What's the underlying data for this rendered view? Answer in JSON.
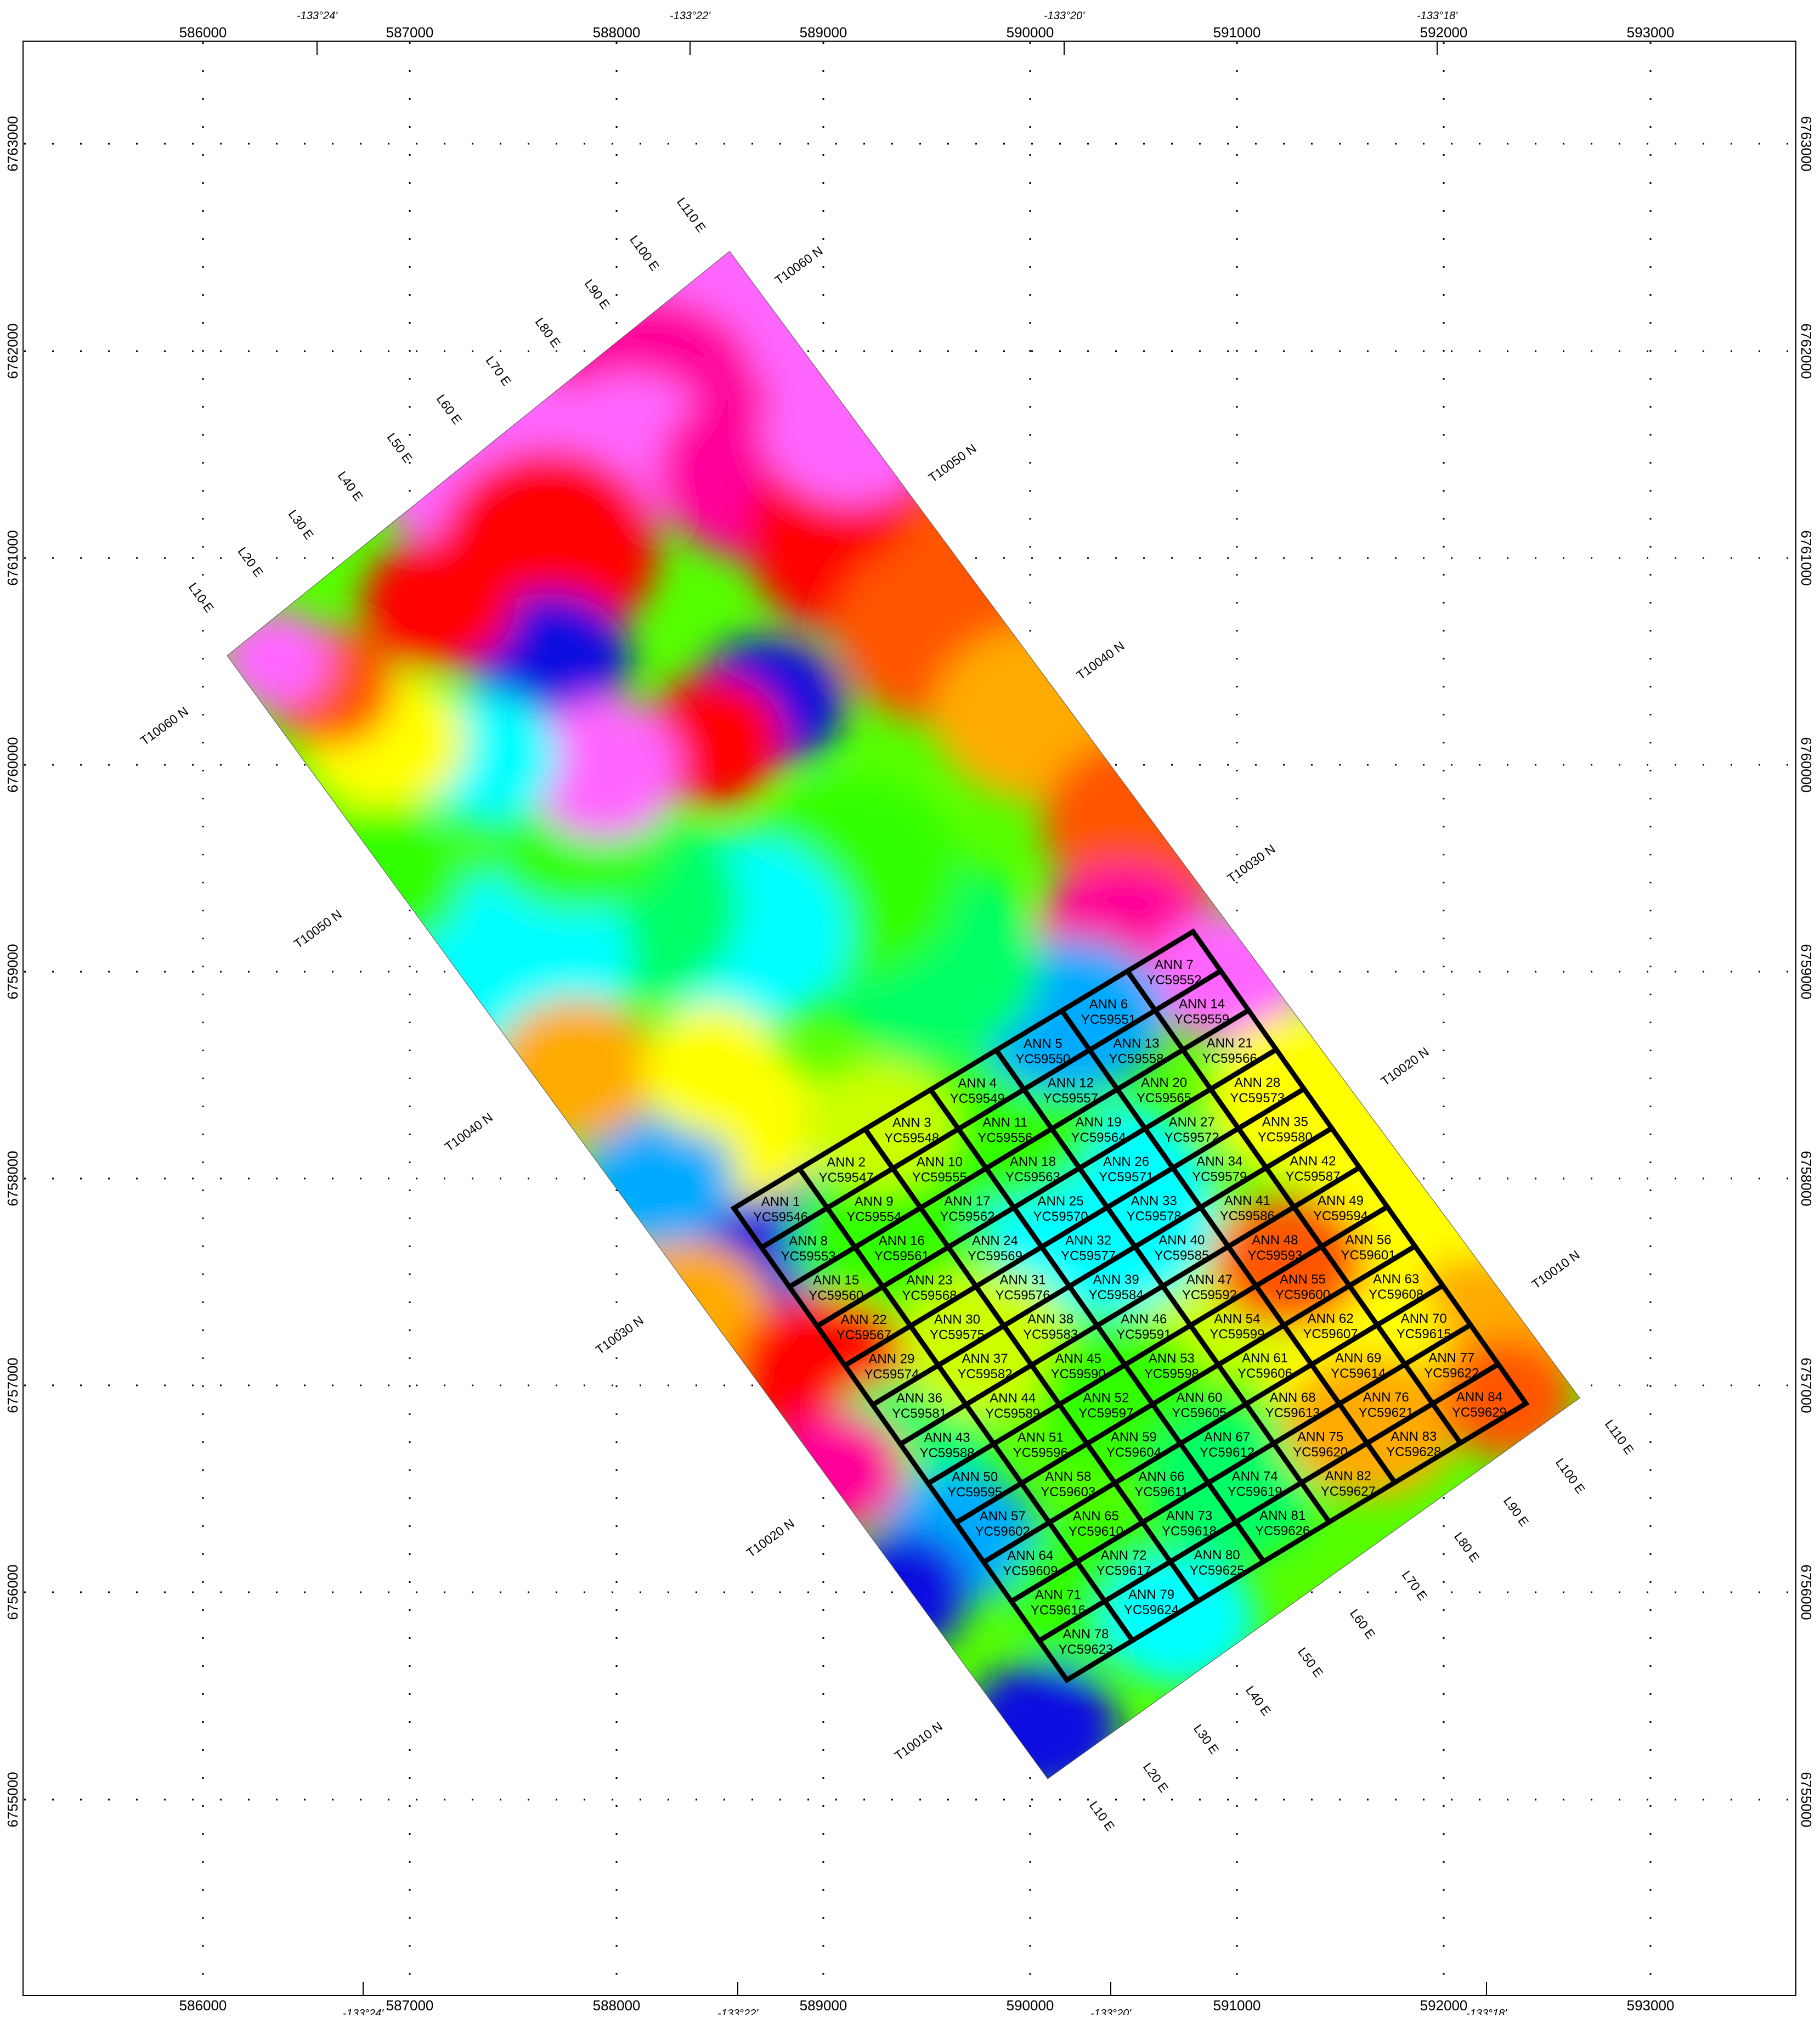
{
  "map": {
    "easting_ticks": [
      "586000",
      "587000",
      "588000",
      "589000",
      "590000",
      "591000",
      "592000",
      "593000"
    ],
    "northing_ticks": [
      "6763000",
      "6762000",
      "6761000",
      "6760000",
      "6759000",
      "6758000",
      "6757000",
      "6756000",
      "6755000"
    ],
    "longitude_ticks": [
      "-133°24'",
      "-133°22'",
      "-133°20'",
      "-133°18'"
    ],
    "survey_lines": [
      "L10 E",
      "L20 E",
      "L30 E",
      "L40 E",
      "L50 E",
      "L60 E",
      "L70 E",
      "L80 E",
      "L90 E",
      "L100 E",
      "L110 E"
    ],
    "tie_lines": [
      "T10010 N",
      "T10020 N",
      "T10030 N",
      "T10040 N",
      "T10050 N",
      "T10060 N"
    ],
    "claims": [
      {
        "name": "ANN 1",
        "id": "YC59546"
      },
      {
        "name": "ANN 2",
        "id": "YC59547"
      },
      {
        "name": "ANN 3",
        "id": "YC59548"
      },
      {
        "name": "ANN 4",
        "id": "YC59549"
      },
      {
        "name": "ANN 5",
        "id": "YC59550"
      },
      {
        "name": "ANN 6",
        "id": "YC59551"
      },
      {
        "name": "ANN 7",
        "id": "YC59552"
      },
      {
        "name": "ANN 8",
        "id": "YC59553"
      },
      {
        "name": "ANN 9",
        "id": "YC59554"
      },
      {
        "name": "ANN 10",
        "id": "YC59555"
      },
      {
        "name": "ANN 11",
        "id": "YC59556"
      },
      {
        "name": "ANN 12",
        "id": "YC59557"
      },
      {
        "name": "ANN 13",
        "id": "YC59558"
      },
      {
        "name": "ANN 14",
        "id": "YC59559"
      },
      {
        "name": "ANN 15",
        "id": "YC59560"
      },
      {
        "name": "ANN 16",
        "id": "YC59561"
      },
      {
        "name": "ANN 17",
        "id": "YC59562"
      },
      {
        "name": "ANN 18",
        "id": "YC59563"
      },
      {
        "name": "ANN 19",
        "id": "YC59564"
      },
      {
        "name": "ANN 20",
        "id": "YC59565"
      },
      {
        "name": "ANN 21",
        "id": "YC59566"
      },
      {
        "name": "ANN 22",
        "id": "YC59567"
      },
      {
        "name": "ANN 23",
        "id": "YC59568"
      },
      {
        "name": "ANN 24",
        "id": "YC59569"
      },
      {
        "name": "ANN 25",
        "id": "YC59570"
      },
      {
        "name": "ANN 26",
        "id": "YC59571"
      },
      {
        "name": "ANN 27",
        "id": "YC59572"
      },
      {
        "name": "ANN 28",
        "id": "YC59573"
      },
      {
        "name": "ANN 29",
        "id": "YC59574"
      },
      {
        "name": "ANN 30",
        "id": "YC59575"
      },
      {
        "name": "ANN 31",
        "id": "YC59576"
      },
      {
        "name": "ANN 32",
        "id": "YC59577"
      },
      {
        "name": "ANN 33",
        "id": "YC59578"
      },
      {
        "name": "ANN 34",
        "id": "YC59579"
      },
      {
        "name": "ANN 35",
        "id": "YC59580"
      },
      {
        "name": "ANN 36",
        "id": "YC59581"
      },
      {
        "name": "ANN 37",
        "id": "YC59582"
      },
      {
        "name": "ANN 38",
        "id": "YC59583"
      },
      {
        "name": "ANN 39",
        "id": "YC59584"
      },
      {
        "name": "ANN 40",
        "id": "YC59585"
      },
      {
        "name": "ANN 41",
        "id": "YC59586"
      },
      {
        "name": "ANN 42",
        "id": "YC59587"
      },
      {
        "name": "ANN 43",
        "id": "YC59588"
      },
      {
        "name": "ANN 44",
        "id": "YC59589"
      },
      {
        "name": "ANN 45",
        "id": "YC59590"
      },
      {
        "name": "ANN 46",
        "id": "YC59591"
      },
      {
        "name": "ANN 47",
        "id": "YC59592"
      },
      {
        "name": "ANN 48",
        "id": "YC59593"
      },
      {
        "name": "ANN 49",
        "id": "YC59594"
      },
      {
        "name": "ANN 50",
        "id": "YC59595"
      },
      {
        "name": "ANN 51",
        "id": "YC59596"
      },
      {
        "name": "ANN 52",
        "id": "YC59597"
      },
      {
        "name": "ANN 53",
        "id": "YC59598"
      },
      {
        "name": "ANN 54",
        "id": "YC59599"
      },
      {
        "name": "ANN 55",
        "id": "YC59600"
      },
      {
        "name": "ANN 56",
        "id": "YC59601"
      },
      {
        "name": "ANN 57",
        "id": "YC59602"
      },
      {
        "name": "ANN 58",
        "id": "YC59603"
      },
      {
        "name": "ANN 59",
        "id": "YC59604"
      },
      {
        "name": "ANN 60",
        "id": "YC59605"
      },
      {
        "name": "ANN 61",
        "id": "YC59606"
      },
      {
        "name": "ANN 62",
        "id": "YC59607"
      },
      {
        "name": "ANN 63",
        "id": "YC59608"
      },
      {
        "name": "ANN 64",
        "id": "YC59609"
      },
      {
        "name": "ANN 65",
        "id": "YC59610"
      },
      {
        "name": "ANN 66",
        "id": "YC59611"
      },
      {
        "name": "ANN 67",
        "id": "YC59612"
      },
      {
        "name": "ANN 68",
        "id": "YC59613"
      },
      {
        "name": "ANN 69",
        "id": "YC59614"
      },
      {
        "name": "ANN 70",
        "id": "YC59615"
      },
      {
        "name": "ANN 71",
        "id": "YC59616"
      },
      {
        "name": "ANN 72",
        "id": "YC59617"
      },
      {
        "name": "ANN 73",
        "id": "YC59618"
      },
      {
        "name": "ANN 74",
        "id": "YC59619"
      },
      {
        "name": "ANN 75",
        "id": "YC59620"
      },
      {
        "name": "ANN 76",
        "id": "YC59621"
      },
      {
        "name": "ANN 77",
        "id": "YC59622"
      },
      {
        "name": "ANN 78",
        "id": "YC59623"
      },
      {
        "name": "ANN 79",
        "id": "YC59624"
      },
      {
        "name": "ANN 80",
        "id": "YC59625"
      },
      {
        "name": "ANN 81",
        "id": "YC59626"
      },
      {
        "name": "ANN 82",
        "id": "YC59627"
      },
      {
        "name": "ANN 83",
        "id": "YC59628"
      },
      {
        "name": "ANN 84",
        "id": "YC59629"
      }
    ],
    "colors": {
      "grid_line": "#000000",
      "ramp": [
        "#1010e0",
        "#00aaff",
        "#00ffff",
        "#00ff66",
        "#33ff00",
        "#ccff00",
        "#ffff00",
        "#ffaa00",
        "#ff5500",
        "#ff0000",
        "#ff0099",
        "#ff66ff"
      ]
    }
  }
}
